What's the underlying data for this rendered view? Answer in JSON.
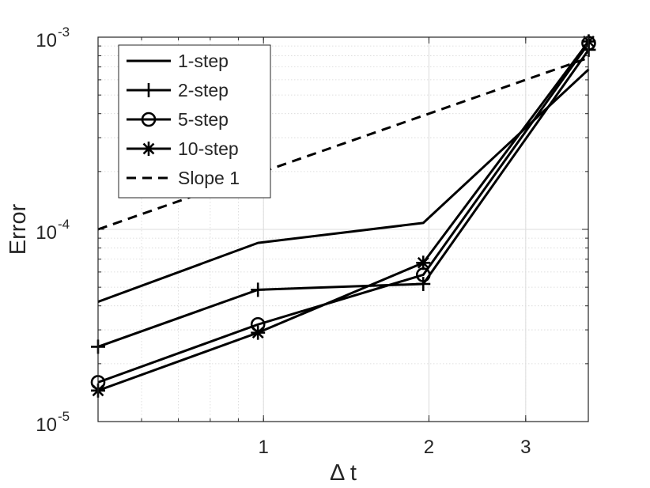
{
  "chart_data": {
    "type": "line",
    "xlabel": "Δ t",
    "ylabel": "Error",
    "x_scale": "log",
    "y_scale": "log",
    "xlim": [
      0.5,
      3.9
    ],
    "ylim": [
      1e-05,
      0.001
    ],
    "x_ticks": [
      {
        "value": 1,
        "label": "1"
      },
      {
        "value": 2,
        "label": "2"
      },
      {
        "value": 3,
        "label": "3"
      }
    ],
    "y_ticks": [
      {
        "value": 1e-05,
        "base": "10",
        "exp": "-5"
      },
      {
        "value": 0.0001,
        "base": "10",
        "exp": "-4"
      },
      {
        "value": 0.001,
        "base": "10",
        "exp": "-3"
      }
    ],
    "grid": true,
    "legend_position": "top-left",
    "series": [
      {
        "name": "1-step",
        "style": "solid",
        "marker": "none",
        "x": [
          0.5,
          0.977,
          1.953,
          3.906
        ],
        "y": [
          4.2e-05,
          8.5e-05,
          0.000108,
          0.00068
        ]
      },
      {
        "name": "2-step",
        "style": "solid",
        "marker": "plus",
        "x": [
          0.5,
          0.977,
          1.953,
          3.906
        ],
        "y": [
          2.45e-05,
          4.85e-05,
          5.2e-05,
          0.00086
        ]
      },
      {
        "name": "5-step",
        "style": "solid",
        "marker": "circle",
        "x": [
          0.5,
          0.977,
          1.953,
          3.906
        ],
        "y": [
          1.6e-05,
          3.2e-05,
          5.8e-05,
          0.00093
        ]
      },
      {
        "name": "10-step",
        "style": "solid",
        "marker": "asterisk",
        "x": [
          0.5,
          0.977,
          1.953,
          3.906
        ],
        "y": [
          1.45e-05,
          2.9e-05,
          6.7e-05,
          0.00095
        ]
      },
      {
        "name": "Slope 1",
        "style": "dashed",
        "marker": "none",
        "x": [
          0.5,
          3.9
        ],
        "y": [
          0.0001,
          0.00078
        ]
      }
    ]
  }
}
